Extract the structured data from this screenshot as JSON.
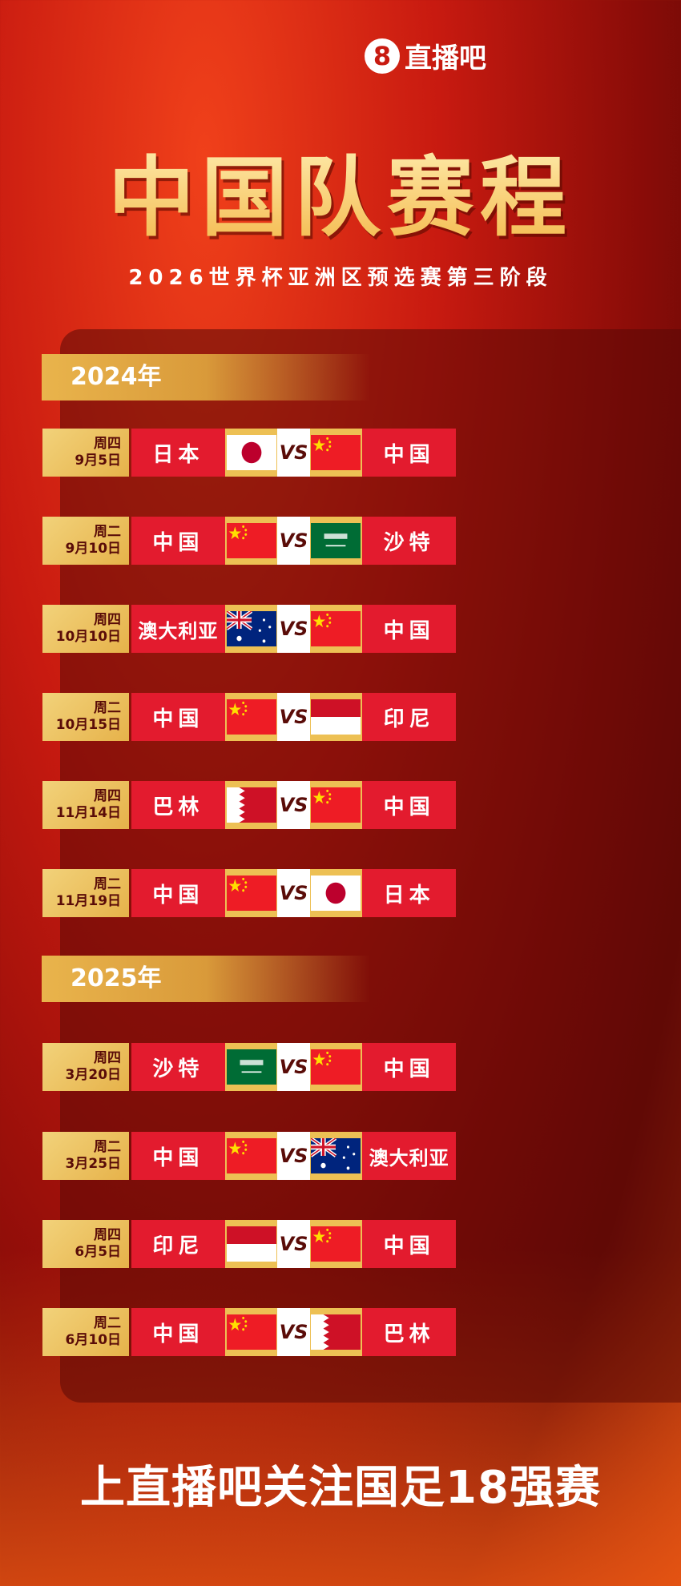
{
  "logo": {
    "mark": "8",
    "text": "直播吧"
  },
  "title": "中国队赛程",
  "subtitle": "2026世界杯亚洲区预选赛第三阶段",
  "sections": [
    {
      "year": "2024年",
      "matches": [
        {
          "weekday": "周四",
          "date": "9月5日",
          "home": "日本",
          "home_flag": "japan",
          "away": "中国",
          "away_flag": "china"
        },
        {
          "weekday": "周二",
          "date": "9月10日",
          "home": "中国",
          "home_flag": "china",
          "away": "沙特",
          "away_flag": "saudi"
        },
        {
          "weekday": "周四",
          "date": "10月10日",
          "home": "澳大利亚",
          "home_flag": "australia",
          "away": "中国",
          "away_flag": "china"
        },
        {
          "weekday": "周二",
          "date": "10月15日",
          "home": "中国",
          "home_flag": "china",
          "away": "印尼",
          "away_flag": "indonesia"
        },
        {
          "weekday": "周四",
          "date": "11月14日",
          "home": "巴林",
          "home_flag": "bahrain",
          "away": "中国",
          "away_flag": "china"
        },
        {
          "weekday": "周二",
          "date": "11月19日",
          "home": "中国",
          "home_flag": "china",
          "away": "日本",
          "away_flag": "japan"
        }
      ]
    },
    {
      "year": "2025年",
      "matches": [
        {
          "weekday": "周四",
          "date": "3月20日",
          "home": "沙特",
          "home_flag": "saudi",
          "away": "中国",
          "away_flag": "china"
        },
        {
          "weekday": "周二",
          "date": "3月25日",
          "home": "中国",
          "home_flag": "china",
          "away": "澳大利亚",
          "away_flag": "australia"
        },
        {
          "weekday": "周四",
          "date": "6月5日",
          "home": "印尼",
          "home_flag": "indonesia",
          "away": "中国",
          "away_flag": "china"
        },
        {
          "weekday": "周二",
          "date": "6月10日",
          "home": "中国",
          "home_flag": "china",
          "away": "巴林",
          "away_flag": "bahrain"
        }
      ]
    }
  ],
  "vs_label": "VS",
  "footer": "上直播吧关注国足18强赛",
  "colors": {
    "team_red": "#e31b2e",
    "gold": "#edc054",
    "date_text": "#5a0c08"
  }
}
